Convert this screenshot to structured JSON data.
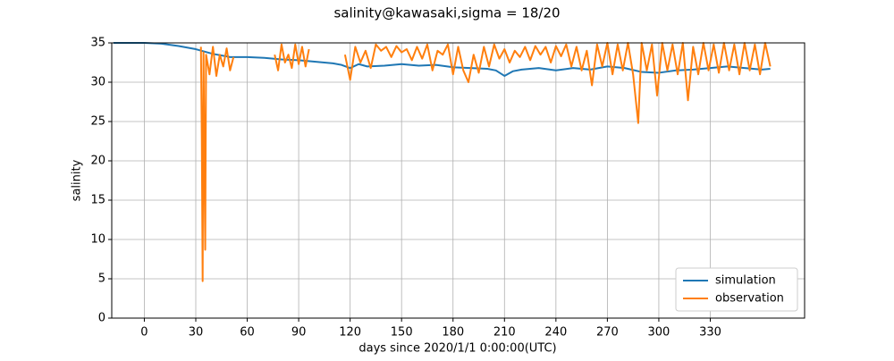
{
  "chart_data": {
    "type": "line",
    "title": "salinity@kawasaki,sigma = 18/20",
    "x_label": "days since 2020/1/1 0:00:00(UTC)",
    "y_label": "salinity",
    "xlim": [
      -19,
      385
    ],
    "ylim": [
      0,
      35
    ],
    "xticks": [
      0,
      30,
      60,
      90,
      120,
      150,
      180,
      210,
      240,
      270,
      300,
      330
    ],
    "yticks": [
      0,
      5,
      10,
      15,
      20,
      25,
      30,
      35
    ],
    "grid": true,
    "legend": "lower right",
    "series": [
      {
        "name": "simulation",
        "color": "#1f77b4",
        "x": [
          -18,
          0,
          10,
          20,
          30,
          40,
          50,
          60,
          70,
          80,
          90,
          100,
          110,
          115,
          120,
          125,
          130,
          140,
          150,
          160,
          170,
          180,
          190,
          200,
          205,
          210,
          215,
          220,
          230,
          240,
          250,
          260,
          270,
          280,
          290,
          300,
          310,
          320,
          330,
          340,
          350,
          360,
          365
        ],
        "values": [
          35,
          35,
          34.9,
          34.6,
          34.2,
          33.6,
          33.2,
          33.2,
          33.1,
          32.9,
          32.8,
          32.6,
          32.4,
          32.2,
          31.8,
          32.3,
          32.0,
          32.1,
          32.3,
          32.1,
          32.2,
          31.9,
          31.8,
          31.7,
          31.5,
          30.8,
          31.4,
          31.6,
          31.8,
          31.5,
          31.8,
          31.6,
          32.0,
          31.8,
          31.3,
          31.2,
          31.5,
          31.6,
          31.8,
          32.0,
          31.8,
          31.6,
          31.7
        ]
      },
      {
        "name": "observation",
        "color": "#ff7f0e",
        "x": [
          33,
          33.5,
          34,
          34.5,
          35,
          35.5,
          36,
          38,
          40,
          42,
          44,
          46,
          48,
          50,
          52,
          53,
          76,
          78,
          80,
          82,
          84,
          86,
          88,
          90,
          92,
          94,
          96,
          98,
          117,
          120,
          123,
          126,
          129,
          132,
          135,
          138,
          141,
          144,
          147,
          150,
          153,
          156,
          159,
          162,
          165,
          168,
          171,
          174,
          177,
          180,
          183,
          186,
          189,
          192,
          195,
          198,
          201,
          204,
          207,
          210,
          213,
          216,
          219,
          222,
          225,
          228,
          231,
          234,
          237,
          240,
          243,
          246,
          249,
          252,
          255,
          258,
          261,
          264,
          267,
          270,
          273,
          276,
          279,
          282,
          285,
          288,
          290,
          293,
          296,
          299,
          302,
          305,
          308,
          311,
          314,
          317,
          320,
          323,
          326,
          329,
          332,
          335,
          338,
          341,
          344,
          347,
          350,
          353,
          356,
          359,
          362,
          365
        ],
        "values": [
          34.5,
          23.2,
          4.7,
          33.8,
          20.5,
          8.7,
          33.5,
          31,
          34.5,
          30.8,
          33.5,
          32,
          34.3,
          31.5,
          33.2,
          null,
          33.5,
          31.5,
          34.8,
          32.5,
          33.5,
          31.8,
          34.8,
          32.3,
          34.5,
          32,
          34.2,
          null,
          33.5,
          30.3,
          34.5,
          32.5,
          34,
          31.8,
          34.8,
          34,
          34.5,
          33.2,
          34.6,
          33.8,
          34.2,
          32.8,
          34.5,
          33,
          34.8,
          31.5,
          34,
          33.5,
          34.8,
          31,
          34.5,
          31.5,
          30,
          33.5,
          31.2,
          34.5,
          32,
          34.8,
          33,
          34.2,
          32.5,
          34,
          33.2,
          34.5,
          32.8,
          34.6,
          33.5,
          34.5,
          32.5,
          34.6,
          33.3,
          34.8,
          32,
          34.5,
          31.5,
          34,
          29.6,
          34.8,
          32,
          35,
          31,
          34.8,
          31.5,
          35,
          31,
          24.8,
          35,
          31.5,
          34.8,
          28.3,
          35,
          31.5,
          34.8,
          31,
          35,
          27.7,
          34.5,
          31,
          35,
          31.5,
          34.8,
          31.2,
          35,
          31.5,
          34.8,
          31,
          35,
          31.5,
          34.8,
          31,
          35,
          32
        ]
      }
    ]
  }
}
